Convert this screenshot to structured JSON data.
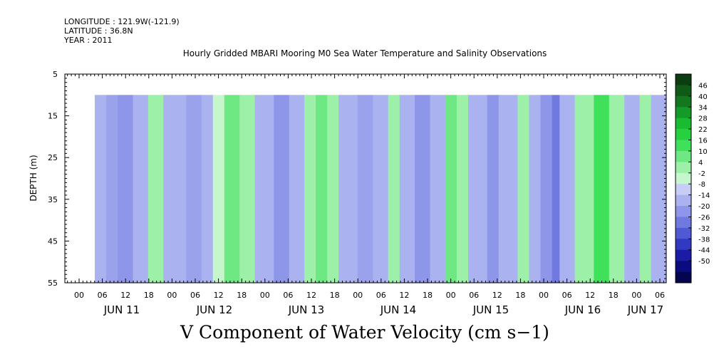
{
  "meta": {
    "longitude": "LONGITUDE : 121.9W(-121.9)",
    "latitude": "LATITUDE : 36.8N",
    "year": "YEAR : 2011"
  },
  "chart_data": {
    "type": "heatmap",
    "title": "Hourly Gridded MBARI Mooring M0 Sea Water Temperature and Salinity Observations",
    "xlabel": "V Component of Water Velocity (cm s−1)",
    "ylabel": "DEPTH (m)",
    "ylim": [
      5,
      55
    ],
    "yticks": [
      "5",
      "15",
      "25",
      "35",
      "45",
      "55"
    ],
    "x_hour_labels": [
      "00",
      "06",
      "12",
      "18",
      "00",
      "06",
      "12",
      "18",
      "00",
      "06",
      "12",
      "18",
      "00",
      "06",
      "12",
      "18",
      "00",
      "06",
      "12",
      "18",
      "00",
      "06",
      "12",
      "18",
      "00",
      "06"
    ],
    "x_day_labels": [
      "JUN 11",
      "JUN 12",
      "JUN 13",
      "JUN 14",
      "JUN 15",
      "JUN 16",
      "JUN 17"
    ],
    "data_depth_range_m": [
      10,
      55
    ],
    "colorbar": {
      "labels": [
        "46",
        "40",
        "34",
        "28",
        "22",
        "16",
        "10",
        "4",
        "-2",
        "-8",
        "-14",
        "-20",
        "-26",
        "-32",
        "-38",
        "-44",
        "-50"
      ],
      "colors": [
        "#0b3d10",
        "#0f5a17",
        "#12771e",
        "#149a26",
        "#19bb30",
        "#26d140",
        "#3fe05a",
        "#6de883",
        "#9cf0a8",
        "#c6f7cc",
        "#c7cdf7",
        "#aab2f0",
        "#8d96e8",
        "#6f79df",
        "#5059d4",
        "#3138c2",
        "#1a1ca6",
        "#0b0b80",
        "#04044f"
      ]
    },
    "series_note": "",
    "bands": [
      [
        0,
        "#aab2f0"
      ],
      [
        3,
        "#9aa2ec"
      ],
      [
        6,
        "#8d96e8"
      ],
      [
        10,
        "#aab2f0"
      ],
      [
        14,
        "#9cf0a8"
      ],
      [
        18,
        "#aab2f0"
      ],
      [
        24,
        "#9aa2ec"
      ],
      [
        28,
        "#aab2f0"
      ],
      [
        31,
        "#c6f7cc"
      ],
      [
        34,
        "#6de883"
      ],
      [
        38,
        "#9cf0a8"
      ],
      [
        42,
        "#aab2f0"
      ],
      [
        47,
        "#8d96e8"
      ],
      [
        51,
        "#aab2f0"
      ],
      [
        55,
        "#9cf0a8"
      ],
      [
        58,
        "#6de883"
      ],
      [
        61,
        "#9cf0a8"
      ],
      [
        64,
        "#aab2f0"
      ],
      [
        69,
        "#9aa2ec"
      ],
      [
        73,
        "#aab2f0"
      ],
      [
        77,
        "#9cf0a8"
      ],
      [
        80,
        "#aab2f0"
      ],
      [
        84,
        "#8d96e8"
      ],
      [
        88,
        "#aab2f0"
      ],
      [
        92,
        "#6de883"
      ],
      [
        95,
        "#9cf0a8"
      ],
      [
        98,
        "#aab2f0"
      ],
      [
        103,
        "#8d96e8"
      ],
      [
        106,
        "#aab2f0"
      ],
      [
        111,
        "#9cf0a8"
      ],
      [
        114,
        "#aab2f0"
      ],
      [
        117,
        "#8d96e8"
      ],
      [
        120,
        "#6f79df"
      ],
      [
        122,
        "#aab2f0"
      ],
      [
        126,
        "#9cf0a8"
      ],
      [
        131,
        "#3fe05a"
      ],
      [
        135,
        "#9cf0a8"
      ],
      [
        139,
        "#aab2f0"
      ],
      [
        143,
        "#9cf0a8"
      ],
      [
        146,
        "#aab2f0"
      ]
    ]
  }
}
